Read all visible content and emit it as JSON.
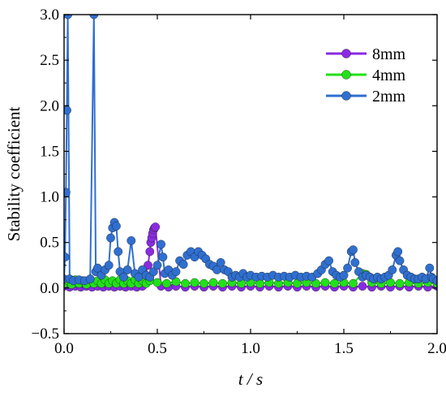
{
  "chart_data": {
    "type": "scatter",
    "xlabel": "t / s",
    "ylabel": "Stability coefficient",
    "xlim": [
      0.0,
      2.0
    ],
    "ylim": [
      -0.5,
      3.0
    ],
    "x_ticks": [
      "0.0",
      "0.5",
      "1.0",
      "1.5",
      "2.0"
    ],
    "y_ticks": [
      "−0.5",
      "0.0",
      "0.5",
      "1.0",
      "1.5",
      "2.0",
      "2.5",
      "3.0"
    ],
    "legend_position": "top-right",
    "grid": false,
    "series": [
      {
        "name": "8mm",
        "color": "#8a2be2",
        "points": [
          [
            0.0,
            0.02
          ],
          [
            0.03,
            0.01
          ],
          [
            0.06,
            0.02
          ],
          [
            0.09,
            0.01
          ],
          [
            0.12,
            0.02
          ],
          [
            0.15,
            0.01
          ],
          [
            0.18,
            0.02
          ],
          [
            0.21,
            0.01
          ],
          [
            0.24,
            0.02
          ],
          [
            0.27,
            0.01
          ],
          [
            0.3,
            0.02
          ],
          [
            0.33,
            0.01
          ],
          [
            0.36,
            0.02
          ],
          [
            0.39,
            0.01
          ],
          [
            0.42,
            0.02
          ],
          [
            0.45,
            0.25
          ],
          [
            0.46,
            0.4
          ],
          [
            0.465,
            0.5
          ],
          [
            0.47,
            0.55
          ],
          [
            0.475,
            0.6
          ],
          [
            0.48,
            0.64
          ],
          [
            0.485,
            0.66
          ],
          [
            0.49,
            0.67
          ],
          [
            0.52,
            0.02
          ],
          [
            0.56,
            0.01
          ],
          [
            0.6,
            0.02
          ],
          [
            0.65,
            0.01
          ],
          [
            0.7,
            0.02
          ],
          [
            0.75,
            0.01
          ],
          [
            0.8,
            0.02
          ],
          [
            0.85,
            0.01
          ],
          [
            0.9,
            0.02
          ],
          [
            0.95,
            0.01
          ],
          [
            1.0,
            0.02
          ],
          [
            1.05,
            0.01
          ],
          [
            1.1,
            0.02
          ],
          [
            1.15,
            0.01
          ],
          [
            1.2,
            0.02
          ],
          [
            1.25,
            0.01
          ],
          [
            1.3,
            0.02
          ],
          [
            1.35,
            0.01
          ],
          [
            1.4,
            0.02
          ],
          [
            1.45,
            0.01
          ],
          [
            1.5,
            0.02
          ],
          [
            1.55,
            0.01
          ],
          [
            1.6,
            0.02
          ],
          [
            1.65,
            0.01
          ],
          [
            1.7,
            0.02
          ],
          [
            1.75,
            0.01
          ],
          [
            1.8,
            0.02
          ],
          [
            1.85,
            0.01
          ],
          [
            1.9,
            0.02
          ],
          [
            1.95,
            0.01
          ],
          [
            2.0,
            0.02
          ]
        ]
      },
      {
        "name": "4mm",
        "color": "#22e01a",
        "points": [
          [
            0.0,
            0.05
          ],
          [
            0.02,
            0.08
          ],
          [
            0.04,
            0.04
          ],
          [
            0.06,
            0.09
          ],
          [
            0.08,
            0.05
          ],
          [
            0.1,
            0.08
          ],
          [
            0.12,
            0.04
          ],
          [
            0.14,
            0.09
          ],
          [
            0.16,
            0.05
          ],
          [
            0.18,
            0.08
          ],
          [
            0.2,
            0.05
          ],
          [
            0.22,
            0.09
          ],
          [
            0.24,
            0.05
          ],
          [
            0.26,
            0.08
          ],
          [
            0.28,
            0.05
          ],
          [
            0.3,
            0.09
          ],
          [
            0.32,
            0.05
          ],
          [
            0.34,
            0.08
          ],
          [
            0.36,
            0.05
          ],
          [
            0.38,
            0.09
          ],
          [
            0.4,
            0.05
          ],
          [
            0.42,
            0.08
          ],
          [
            0.44,
            0.05
          ],
          [
            0.46,
            0.08
          ],
          [
            0.5,
            0.06
          ],
          [
            0.55,
            0.05
          ],
          [
            0.6,
            0.07
          ],
          [
            0.65,
            0.05
          ],
          [
            0.7,
            0.06
          ],
          [
            0.75,
            0.05
          ],
          [
            0.8,
            0.06
          ],
          [
            0.85,
            0.05
          ],
          [
            0.9,
            0.06
          ],
          [
            0.95,
            0.05
          ],
          [
            1.0,
            0.06
          ],
          [
            1.05,
            0.05
          ],
          [
            1.1,
            0.06
          ],
          [
            1.15,
            0.05
          ],
          [
            1.2,
            0.06
          ],
          [
            1.25,
            0.05
          ],
          [
            1.3,
            0.06
          ],
          [
            1.35,
            0.05
          ],
          [
            1.4,
            0.06
          ],
          [
            1.45,
            0.05
          ],
          [
            1.5,
            0.06
          ],
          [
            1.55,
            0.05
          ],
          [
            1.6,
            0.16
          ],
          [
            1.62,
            0.15
          ],
          [
            1.65,
            0.06
          ],
          [
            1.7,
            0.05
          ],
          [
            1.75,
            0.06
          ],
          [
            1.8,
            0.05
          ],
          [
            1.85,
            0.06
          ],
          [
            1.9,
            0.05
          ],
          [
            1.95,
            0.06
          ],
          [
            2.0,
            0.05
          ]
        ]
      },
      {
        "name": "2mm",
        "color": "#2f6fd0",
        "points": [
          [
            0.0,
            0.1
          ],
          [
            0.005,
            0.34
          ],
          [
            0.01,
            1.05
          ],
          [
            0.015,
            1.95
          ],
          [
            0.02,
            3.0
          ],
          [
            0.03,
            0.1
          ],
          [
            0.05,
            0.08
          ],
          [
            0.08,
            0.09
          ],
          [
            0.11,
            0.08
          ],
          [
            0.14,
            0.1
          ],
          [
            0.16,
            3.0
          ],
          [
            0.17,
            0.18
          ],
          [
            0.18,
            0.22
          ],
          [
            0.2,
            0.14
          ],
          [
            0.22,
            0.2
          ],
          [
            0.24,
            0.25
          ],
          [
            0.25,
            0.55
          ],
          [
            0.26,
            0.66
          ],
          [
            0.27,
            0.72
          ],
          [
            0.28,
            0.68
          ],
          [
            0.29,
            0.4
          ],
          [
            0.3,
            0.18
          ],
          [
            0.32,
            0.12
          ],
          [
            0.34,
            0.2
          ],
          [
            0.36,
            0.52
          ],
          [
            0.38,
            0.16
          ],
          [
            0.4,
            0.12
          ],
          [
            0.42,
            0.2
          ],
          [
            0.44,
            0.14
          ],
          [
            0.46,
            0.12
          ],
          [
            0.48,
            0.18
          ],
          [
            0.5,
            0.25
          ],
          [
            0.52,
            0.48
          ],
          [
            0.53,
            0.34
          ],
          [
            0.54,
            0.16
          ],
          [
            0.56,
            0.2
          ],
          [
            0.58,
            0.14
          ],
          [
            0.6,
            0.18
          ],
          [
            0.62,
            0.3
          ],
          [
            0.64,
            0.26
          ],
          [
            0.66,
            0.36
          ],
          [
            0.68,
            0.4
          ],
          [
            0.7,
            0.34
          ],
          [
            0.72,
            0.4
          ],
          [
            0.74,
            0.36
          ],
          [
            0.76,
            0.32
          ],
          [
            0.78,
            0.26
          ],
          [
            0.8,
            0.24
          ],
          [
            0.82,
            0.2
          ],
          [
            0.84,
            0.28
          ],
          [
            0.86,
            0.2
          ],
          [
            0.88,
            0.18
          ],
          [
            0.9,
            0.12
          ],
          [
            0.92,
            0.14
          ],
          [
            0.94,
            0.12
          ],
          [
            0.96,
            0.16
          ],
          [
            0.98,
            0.12
          ],
          [
            1.0,
            0.14
          ],
          [
            1.03,
            0.12
          ],
          [
            1.06,
            0.13
          ],
          [
            1.09,
            0.12
          ],
          [
            1.12,
            0.14
          ],
          [
            1.15,
            0.12
          ],
          [
            1.18,
            0.13
          ],
          [
            1.21,
            0.12
          ],
          [
            1.24,
            0.14
          ],
          [
            1.27,
            0.12
          ],
          [
            1.3,
            0.13
          ],
          [
            1.33,
            0.12
          ],
          [
            1.36,
            0.16
          ],
          [
            1.38,
            0.2
          ],
          [
            1.4,
            0.26
          ],
          [
            1.42,
            0.3
          ],
          [
            1.44,
            0.18
          ],
          [
            1.46,
            0.14
          ],
          [
            1.48,
            0.12
          ],
          [
            1.5,
            0.14
          ],
          [
            1.52,
            0.22
          ],
          [
            1.54,
            0.4
          ],
          [
            1.55,
            0.42
          ],
          [
            1.56,
            0.28
          ],
          [
            1.58,
            0.18
          ],
          [
            1.6,
            0.12
          ],
          [
            1.62,
            0.14
          ],
          [
            1.64,
            0.12
          ],
          [
            1.66,
            0.1
          ],
          [
            1.68,
            0.12
          ],
          [
            1.7,
            0.1
          ],
          [
            1.72,
            0.12
          ],
          [
            1.74,
            0.14
          ],
          [
            1.76,
            0.2
          ],
          [
            1.78,
            0.36
          ],
          [
            1.79,
            0.4
          ],
          [
            1.8,
            0.3
          ],
          [
            1.82,
            0.2
          ],
          [
            1.84,
            0.14
          ],
          [
            1.86,
            0.12
          ],
          [
            1.88,
            0.1
          ],
          [
            1.9,
            0.1
          ],
          [
            1.92,
            0.12
          ],
          [
            1.94,
            0.1
          ],
          [
            1.96,
            0.22
          ],
          [
            1.97,
            0.12
          ],
          [
            1.98,
            0.1
          ],
          [
            2.0,
            0.08
          ]
        ]
      }
    ]
  }
}
